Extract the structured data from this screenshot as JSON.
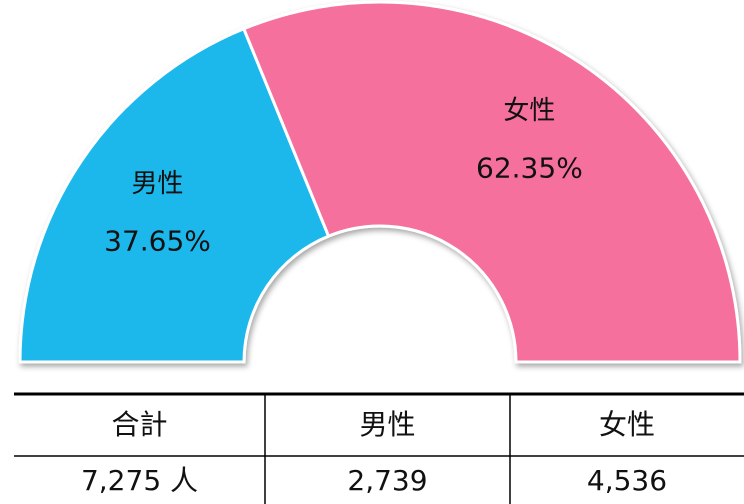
{
  "chart_data": {
    "type": "pie",
    "shape": "half-donut",
    "categories": [
      "男性",
      "女性"
    ],
    "values": [
      37.65,
      62.35
    ],
    "value_labels": [
      "37.65%",
      "62.35%"
    ],
    "colors": [
      "#1ab8ec",
      "#f5709c"
    ]
  },
  "table": {
    "header": [
      "合計",
      "男性",
      "女性"
    ],
    "rows": [
      [
        "7,275 人",
        "2,739",
        "4,536"
      ]
    ]
  }
}
